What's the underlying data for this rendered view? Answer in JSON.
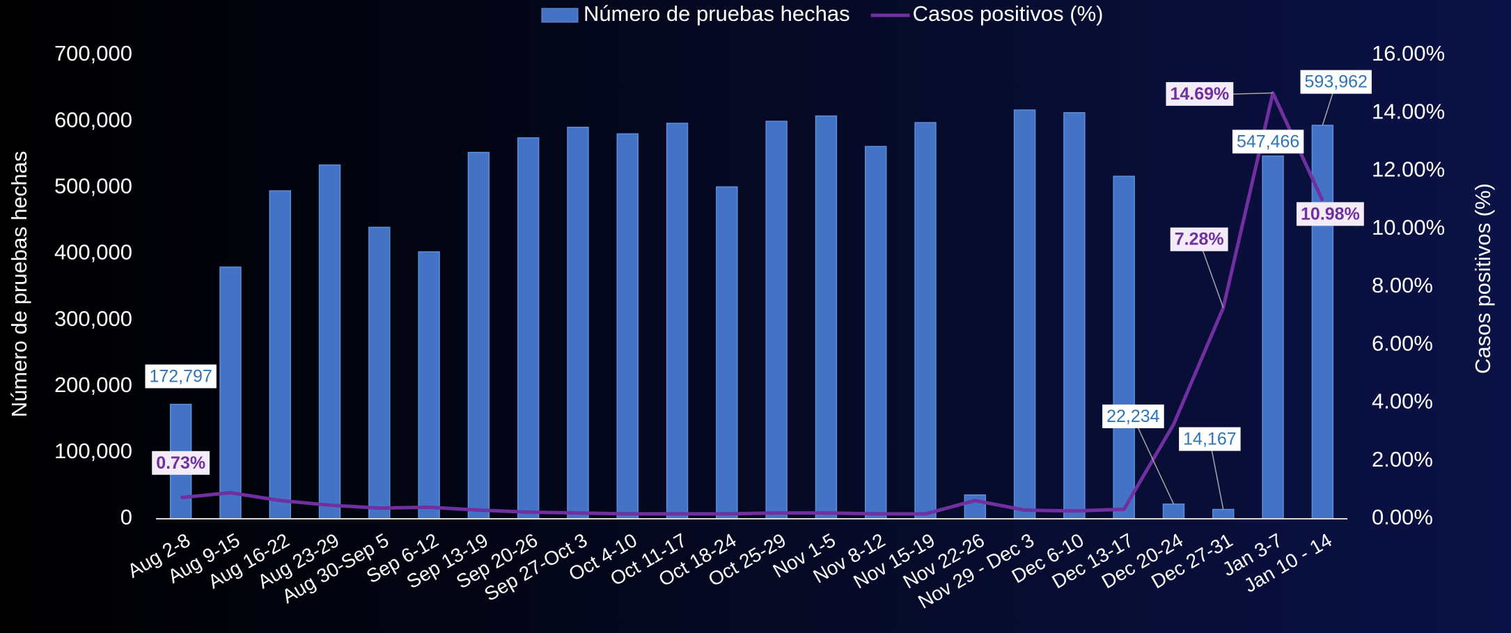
{
  "chart_data": {
    "type": "bar+line",
    "legend": "top",
    "categories": [
      "Aug 2-8",
      "Aug 9-15",
      "Aug 16-22",
      "Aug 23-29",
      "Aug 30-Sep 5",
      "Sep 6-12",
      "Sep 13-19",
      "Sep 20-26",
      "Sep 27-Oct 3",
      "Oct 4-10",
      "Oct 11-17",
      "Oct 18-24",
      "Oct 25-29",
      "Nov 1-5",
      "Nov 8-12",
      "Nov 15-19",
      "Nov 22-26",
      "Nov 29 - Dec 3",
      "Dec 6-10",
      "Dec 13-17",
      "Dec 20-24",
      "Dec 27-31",
      "Jan 3-7",
      "Jan 10 - 14"
    ],
    "y_label": "Número de pruebas hechas",
    "y2_label": "Casos positivos (%)",
    "ylim": [
      0,
      700000
    ],
    "yticks": [
      0,
      {
        "value": 100000,
        "label": "100,000"
      },
      {
        "value": 200000,
        "label": "200,000"
      },
      {
        "value": 300000,
        "label": "300,000"
      },
      {
        "value": 400000,
        "label": "400,000"
      },
      {
        "value": 500000,
        "label": "500,000"
      },
      {
        "value": 600000,
        "label": "600,000"
      },
      {
        "value": 700000,
        "label": "700,000"
      }
    ],
    "y2lim": [
      0,
      16
    ],
    "y2ticks": [
      {
        "value": 0,
        "label": "0.00%"
      },
      {
        "value": 2,
        "label": "2.00%"
      },
      {
        "value": 4,
        "label": "4.00%"
      },
      {
        "value": 6,
        "label": "6.00%"
      },
      {
        "value": 8,
        "label": "8.00%"
      },
      {
        "value": 10,
        "label": "10.00%"
      },
      {
        "value": 12,
        "label": "12.00%"
      },
      {
        "value": 14,
        "label": "14.00%"
      },
      {
        "value": 16,
        "label": "16.00%"
      }
    ],
    "series": [
      {
        "name": "Número de pruebas hechas",
        "type": "bar",
        "color": "#4472c4",
        "values": [
          172797,
          380000,
          495000,
          534000,
          440000,
          403000,
          553000,
          575000,
          591000,
          581000,
          597000,
          501000,
          600000,
          608000,
          562000,
          598000,
          36000,
          617000,
          613000,
          517000,
          22234,
          14167,
          547466,
          593962
        ],
        "value_labels": [
          "172,797",
          null,
          null,
          null,
          null,
          null,
          null,
          null,
          null,
          null,
          null,
          null,
          null,
          null,
          null,
          null,
          null,
          null,
          null,
          null,
          "22,234",
          "14,167",
          "547,466",
          "593,962"
        ]
      },
      {
        "name": "Casos positivos (%)",
        "type": "line",
        "axis": "y2",
        "color": "#7030a0",
        "values": [
          0.73,
          0.9,
          0.63,
          0.47,
          0.37,
          0.4,
          0.3,
          0.23,
          0.2,
          0.17,
          0.17,
          0.17,
          0.2,
          0.2,
          0.17,
          0.17,
          0.63,
          0.3,
          0.27,
          0.33,
          3.26,
          7.28,
          14.69,
          10.98
        ],
        "value_labels": [
          "0.73%",
          null,
          null,
          null,
          null,
          null,
          null,
          null,
          null,
          null,
          null,
          null,
          null,
          null,
          null,
          null,
          null,
          null,
          null,
          null,
          null,
          "7.28%",
          "14.69%",
          "10.98%"
        ]
      }
    ]
  }
}
